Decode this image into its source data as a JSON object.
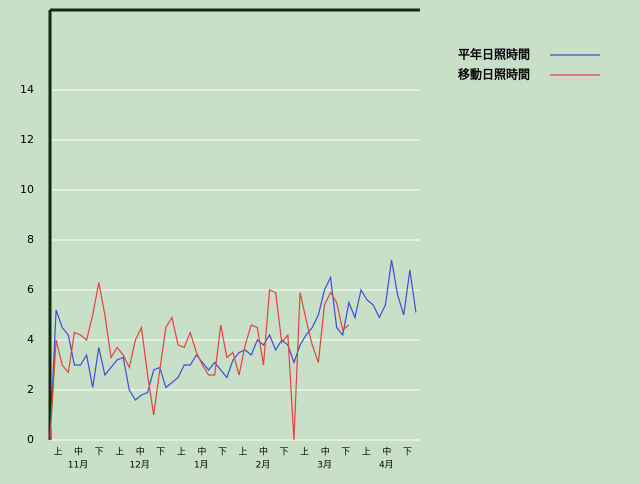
{
  "chart_data": {
    "type": "line",
    "legend": "right",
    "grid": true,
    "categories": [
      "上",
      "中",
      "下",
      "上",
      "中",
      "下",
      "上",
      "中",
      "下",
      "上",
      "中",
      "下",
      "上",
      "中",
      "下",
      "上",
      "中",
      "下"
    ],
    "months": [
      "11月",
      "12月",
      "1月",
      "2月",
      "3月",
      "4月"
    ],
    "x": [
      0,
      3,
      6,
      9,
      12,
      15,
      18,
      21,
      24,
      27,
      30,
      33,
      36,
      39,
      42,
      45,
      48,
      51,
      54,
      57,
      60,
      63,
      66,
      69,
      72,
      75,
      78,
      81,
      84,
      87,
      90,
      93,
      96,
      99,
      102,
      105,
      108,
      111,
      114,
      117,
      120,
      123,
      126,
      129,
      132,
      135,
      138,
      141,
      144,
      147,
      150,
      153,
      156,
      159,
      162,
      165,
      168,
      171,
      174,
      177,
      180
    ],
    "xlim": [
      0,
      182
    ],
    "ylim": [
      0,
      17.2
    ],
    "yticks": [
      0,
      2,
      4,
      6,
      8,
      10,
      12,
      14
    ],
    "series": [
      {
        "name": "平年日照時間",
        "color": "#3a4fd8",
        "values": [
          0,
          5.2,
          4.5,
          4.2,
          3.0,
          3.0,
          3.4,
          2.1,
          3.7,
          2.6,
          2.9,
          3.2,
          3.3,
          2.0,
          1.6,
          1.8,
          1.9,
          2.8,
          2.9,
          2.1,
          2.3,
          2.5,
          3.0,
          3.0,
          3.4,
          3.1,
          2.8,
          3.1,
          2.8,
          2.5,
          3.2,
          3.5,
          3.6,
          3.4,
          4.0,
          3.8,
          4.2,
          3.6,
          4.0,
          3.8,
          3.1,
          3.8,
          4.2,
          4.5,
          5.0,
          6.0,
          6.5,
          4.5,
          4.2,
          5.5,
          4.9,
          6.0,
          5.6,
          5.4,
          4.9,
          5.4,
          7.2,
          5.8,
          5.0,
          6.8,
          5.1
        ]
      },
      {
        "name": "移動日照時間",
        "color": "#e8413a",
        "values": [
          0,
          4.0,
          3.0,
          2.7,
          4.3,
          4.2,
          4.0,
          5.0,
          6.3,
          5.0,
          3.3,
          3.7,
          3.4,
          2.9,
          4.0,
          4.5,
          2.6,
          1.0,
          2.8,
          4.5,
          4.9,
          3.8,
          3.7,
          4.3,
          3.5,
          3.0,
          2.6,
          2.6,
          4.6,
          3.3,
          3.5,
          2.6,
          3.8,
          4.6,
          4.5,
          3.0,
          6.0,
          5.9,
          3.9,
          4.2,
          0,
          5.9,
          4.8,
          3.8,
          3.1,
          5.4,
          5.9,
          5.5,
          4.4,
          4.6,
          null,
          null,
          null,
          null,
          null,
          null,
          null,
          null,
          null,
          null,
          null
        ]
      }
    ]
  }
}
